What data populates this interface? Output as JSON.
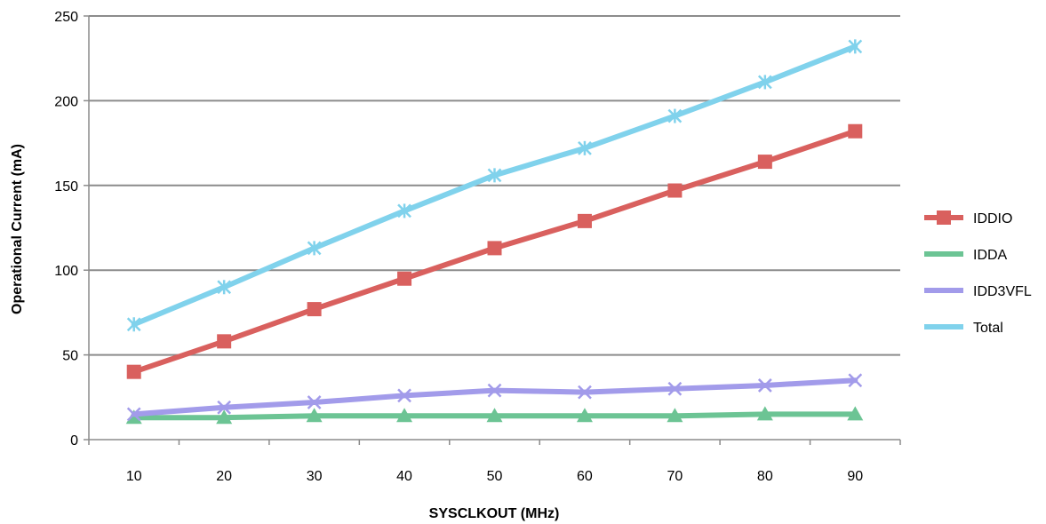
{
  "chart_data": {
    "type": "line",
    "xlabel": "SYSCLKOUT (MHz)",
    "ylabel": "Operational Current (mA)",
    "categories": [
      "10",
      "20",
      "30",
      "40",
      "50",
      "60",
      "70",
      "80",
      "90"
    ],
    "ylim": [
      0,
      250
    ],
    "yticks": [
      "0",
      "50",
      "100",
      "150",
      "200",
      "250"
    ],
    "grid": "horizontal",
    "legend_position": "right",
    "series": [
      {
        "name": "IDDIO",
        "color": "#d9605e",
        "marker": "square",
        "values": [
          40,
          58,
          77,
          95,
          113,
          129,
          147,
          164,
          182
        ]
      },
      {
        "name": "IDDA",
        "color": "#6cc494",
        "marker": "triangle",
        "values": [
          13,
          13,
          14,
          14,
          14,
          14,
          14,
          15,
          15
        ]
      },
      {
        "name": "IDD3VFL",
        "color": "#a29bea",
        "marker": "x",
        "values": [
          15,
          19,
          22,
          26,
          29,
          28,
          30,
          32,
          35
        ]
      },
      {
        "name": "Total",
        "color": "#80d2ec",
        "marker": "star",
        "values": [
          68,
          90,
          113,
          135,
          156,
          172,
          191,
          211,
          232
        ]
      }
    ]
  }
}
